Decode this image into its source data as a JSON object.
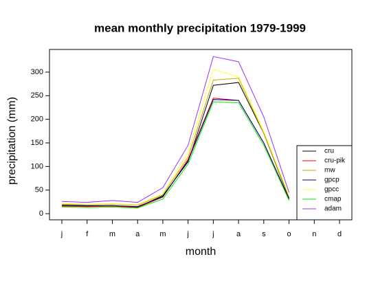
{
  "chart_data": {
    "type": "line",
    "title": "mean monthly precipitation 1979-1999",
    "x_label": "month",
    "y_label": "precipitation (mm)",
    "categories": [
      "j",
      "f",
      "m",
      "a",
      "m",
      "j",
      "j",
      "a",
      "s",
      "o",
      "n",
      "d"
    ],
    "ylim": [
      -13,
      348
    ],
    "yticks": [
      0,
      50,
      100,
      150,
      200,
      250,
      300
    ],
    "legend": "bottom-right",
    "series": [
      {
        "name": "cru",
        "color": "#000000",
        "values": [
          17,
          16,
          17,
          14,
          38,
          110,
          272,
          278,
          170,
          33,
          null,
          null
        ]
      },
      {
        "name": "cru-pik",
        "color": "#ff0000",
        "values": [
          16,
          15,
          16,
          13,
          35,
          115,
          245,
          240,
          150,
          30,
          null,
          null
        ]
      },
      {
        "name": "mw",
        "color": "#c8a800",
        "values": [
          20,
          19,
          20,
          18,
          40,
          120,
          283,
          287,
          170,
          35,
          null,
          null
        ]
      },
      {
        "name": "gpcp",
        "color": "#000080",
        "values": [
          18,
          17,
          17,
          15,
          36,
          112,
          242,
          240,
          150,
          32,
          null,
          null
        ]
      },
      {
        "name": "gpcc",
        "color": "#ffff33",
        "values": [
          22,
          20,
          21,
          19,
          42,
          130,
          306,
          290,
          175,
          38,
          null,
          null
        ]
      },
      {
        "name": "cmap",
        "color": "#00ee00",
        "values": [
          14,
          13,
          14,
          12,
          31,
          105,
          237,
          235,
          145,
          28,
          null,
          null
        ]
      },
      {
        "name": "adam",
        "color": "#9b30ff",
        "values": [
          26,
          24,
          28,
          24,
          55,
          145,
          333,
          322,
          205,
          45,
          null,
          null
        ]
      }
    ]
  }
}
